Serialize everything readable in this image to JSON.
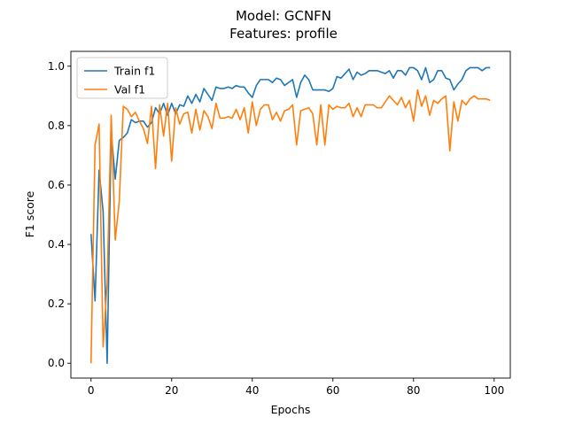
{
  "chart_data": {
    "type": "line",
    "title": "Model: GCNFN",
    "subtitle": "Features: profile",
    "xlabel": "Epochs",
    "ylabel": "F1 score",
    "xlim": [
      -5,
      104
    ],
    "ylim": [
      -0.05,
      1.05
    ],
    "xticks": [
      0,
      20,
      40,
      60,
      80,
      100
    ],
    "yticks": [
      0.0,
      0.2,
      0.4,
      0.6,
      0.8,
      1.0
    ],
    "grid": false,
    "legend": "upper left",
    "x": [
      0,
      1,
      2,
      3,
      4,
      5,
      6,
      7,
      8,
      9,
      10,
      11,
      12,
      13,
      14,
      15,
      16,
      17,
      18,
      19,
      20,
      21,
      22,
      23,
      24,
      25,
      26,
      27,
      28,
      29,
      30,
      31,
      32,
      33,
      34,
      35,
      36,
      37,
      38,
      39,
      40,
      41,
      42,
      43,
      44,
      45,
      46,
      47,
      48,
      49,
      50,
      51,
      52,
      53,
      54,
      55,
      56,
      57,
      58,
      59,
      60,
      61,
      62,
      63,
      64,
      65,
      66,
      67,
      68,
      69,
      70,
      71,
      72,
      73,
      74,
      75,
      76,
      77,
      78,
      79,
      80,
      81,
      82,
      83,
      84,
      85,
      86,
      87,
      88,
      89,
      90,
      91,
      92,
      93,
      94,
      95,
      96,
      97,
      98,
      99
    ],
    "series": [
      {
        "name": "Train f1",
        "color": "#1f77b4",
        "values": [
          0.435,
          0.21,
          0.65,
          0.51,
          0.0,
          0.78,
          0.62,
          0.75,
          0.76,
          0.775,
          0.82,
          0.81,
          0.815,
          0.815,
          0.795,
          0.81,
          0.86,
          0.84,
          0.875,
          0.835,
          0.875,
          0.84,
          0.87,
          0.865,
          0.9,
          0.875,
          0.905,
          0.88,
          0.925,
          0.905,
          0.885,
          0.93,
          0.925,
          0.925,
          0.93,
          0.925,
          0.935,
          0.93,
          0.93,
          0.91,
          0.895,
          0.935,
          0.955,
          0.955,
          0.955,
          0.945,
          0.96,
          0.955,
          0.935,
          0.945,
          0.955,
          0.895,
          0.945,
          0.97,
          0.955,
          0.92,
          0.92,
          0.92,
          0.92,
          0.915,
          0.925,
          0.965,
          0.96,
          0.975,
          0.99,
          0.955,
          0.98,
          0.97,
          0.975,
          0.985,
          0.985,
          0.985,
          0.98,
          0.975,
          0.985,
          0.96,
          0.985,
          0.985,
          0.97,
          0.995,
          0.995,
          0.985,
          0.955,
          0.995,
          0.945,
          0.955,
          0.985,
          0.985,
          0.96,
          0.955,
          0.92,
          0.94,
          0.955,
          0.985,
          0.995,
          0.995,
          0.995,
          0.985,
          0.995,
          0.995
        ]
      },
      {
        "name": "Val f1",
        "color": "#ff7f0e",
        "values": [
          0.0,
          0.735,
          0.805,
          0.055,
          0.27,
          0.835,
          0.415,
          0.545,
          0.865,
          0.855,
          0.83,
          0.845,
          0.815,
          0.79,
          0.74,
          0.865,
          0.655,
          0.87,
          0.765,
          0.875,
          0.68,
          0.86,
          0.805,
          0.84,
          0.845,
          0.775,
          0.855,
          0.785,
          0.85,
          0.83,
          0.79,
          0.875,
          0.825,
          0.825,
          0.83,
          0.825,
          0.855,
          0.82,
          0.86,
          0.775,
          0.88,
          0.8,
          0.855,
          0.87,
          0.87,
          0.82,
          0.845,
          0.815,
          0.85,
          0.855,
          0.87,
          0.735,
          0.85,
          0.855,
          0.86,
          0.84,
          0.735,
          0.87,
          0.735,
          0.87,
          0.855,
          0.865,
          0.86,
          0.86,
          0.875,
          0.83,
          0.86,
          0.83,
          0.87,
          0.87,
          0.87,
          0.86,
          0.86,
          0.88,
          0.9,
          0.885,
          0.87,
          0.895,
          0.86,
          0.885,
          0.815,
          0.92,
          0.865,
          0.9,
          0.835,
          0.885,
          0.875,
          0.89,
          0.9,
          0.715,
          0.88,
          0.815,
          0.885,
          0.87,
          0.89,
          0.9,
          0.89,
          0.89,
          0.89,
          0.885
        ]
      }
    ]
  }
}
